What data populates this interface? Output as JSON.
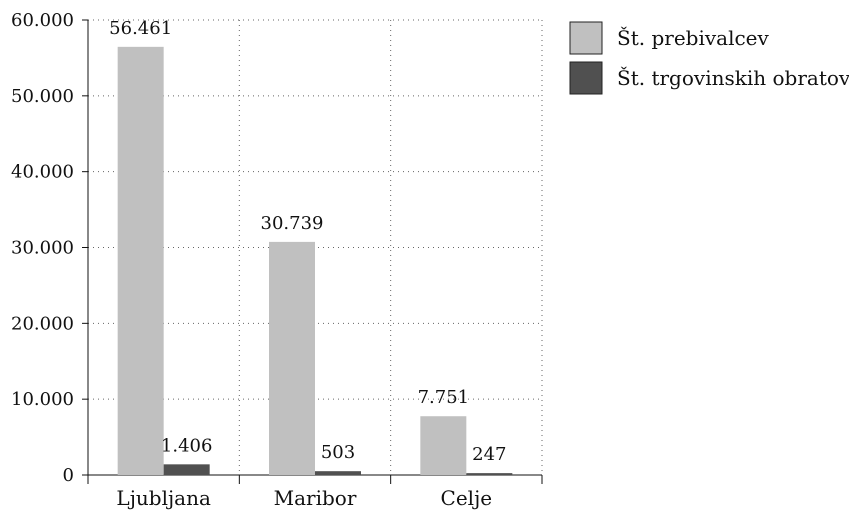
{
  "chart_data": {
    "type": "bar",
    "categories": [
      "Ljubljana",
      "Maribor",
      "Celje"
    ],
    "series": [
      {
        "name": "Št. prebivalcev",
        "values": [
          56461,
          30739,
          7751
        ],
        "labels": [
          "56.461",
          "30.739",
          "7.751"
        ],
        "color": "#c0c0c0"
      },
      {
        "name": "Št. trgovinskih obratov",
        "values": [
          1406,
          503,
          247
        ],
        "labels": [
          "1.406",
          "503",
          "247"
        ],
        "color": "#505050"
      }
    ],
    "ylim": [
      0,
      60000
    ],
    "yticks": [
      0,
      10000,
      20000,
      30000,
      40000,
      50000,
      60000
    ],
    "ytick_labels": [
      "0",
      "10.000",
      "20.000",
      "30.000",
      "40.000",
      "50.000",
      "60.000"
    ],
    "grid": true,
    "legend_position": "top-right",
    "title": "",
    "xlabel": "",
    "ylabel": ""
  }
}
